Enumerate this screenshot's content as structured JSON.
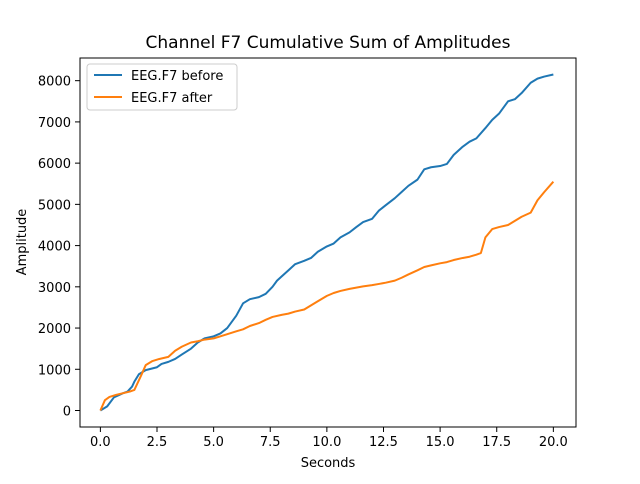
{
  "chart_data": {
    "type": "line",
    "title": "Channel F7 Cumulative Sum of Amplitudes",
    "xlabel": "Seconds",
    "ylabel": "Amplitude",
    "xlim": [
      -0.9,
      21.0
    ],
    "ylim": [
      -400,
      8550
    ],
    "xticks": [
      0.0,
      2.5,
      5.0,
      7.5,
      10.0,
      12.5,
      15.0,
      17.5,
      20.0
    ],
    "xtick_labels": [
      "0.0",
      "2.5",
      "5.0",
      "7.5",
      "10.0",
      "12.5",
      "15.0",
      "17.5",
      "20.0"
    ],
    "yticks": [
      0,
      1000,
      2000,
      3000,
      4000,
      5000,
      6000,
      7000,
      8000
    ],
    "ytick_labels": [
      "0",
      "1000",
      "2000",
      "3000",
      "4000",
      "5000",
      "6000",
      "7000",
      "8000"
    ],
    "grid": false,
    "legend_position": "top-left",
    "series": [
      {
        "name": "EEG.F7 before",
        "color": "#1f77b4",
        "x": [
          0,
          0.3,
          0.6,
          1.0,
          1.2,
          1.4,
          1.5,
          1.7,
          2.0,
          2.5,
          2.7,
          3.0,
          3.3,
          3.6,
          4.0,
          4.3,
          4.6,
          5.0,
          5.3,
          5.6,
          6.0,
          6.3,
          6.6,
          7.0,
          7.3,
          7.6,
          7.8,
          8.0,
          8.3,
          8.6,
          9.0,
          9.3,
          9.6,
          10.0,
          10.3,
          10.6,
          11.0,
          11.3,
          11.6,
          12.0,
          12.3,
          12.6,
          13.0,
          13.3,
          13.6,
          14.0,
          14.3,
          14.6,
          15.0,
          15.3,
          15.6,
          16.0,
          16.3,
          16.6,
          17.0,
          17.3,
          17.6,
          18.0,
          18.3,
          18.6,
          19.0,
          19.3,
          19.6,
          20.0
        ],
        "y": [
          0,
          100,
          320,
          420,
          460,
          580,
          700,
          880,
          980,
          1050,
          1130,
          1180,
          1250,
          1360,
          1500,
          1650,
          1750,
          1800,
          1870,
          2000,
          2300,
          2600,
          2700,
          2750,
          2830,
          3000,
          3150,
          3250,
          3400,
          3550,
          3630,
          3700,
          3850,
          3980,
          4050,
          4200,
          4320,
          4450,
          4570,
          4650,
          4850,
          4980,
          5150,
          5300,
          5450,
          5600,
          5850,
          5900,
          5930,
          5980,
          6200,
          6400,
          6520,
          6600,
          6850,
          7050,
          7200,
          7500,
          7550,
          7700,
          7950,
          8050,
          8100,
          8150
        ]
      },
      {
        "name": "EEG.F7 after",
        "color": "#ff7f0e",
        "x": [
          0,
          0.2,
          0.4,
          0.7,
          1.0,
          1.3,
          1.5,
          1.8,
          2.0,
          2.3,
          2.6,
          3.0,
          3.3,
          3.6,
          4.0,
          4.3,
          4.6,
          5.0,
          5.3,
          5.6,
          6.0,
          6.3,
          6.6,
          7.0,
          7.3,
          7.6,
          8.0,
          8.3,
          8.6,
          9.0,
          9.3,
          9.6,
          10.0,
          10.3,
          10.6,
          11.0,
          11.3,
          11.6,
          12.0,
          12.3,
          12.6,
          13.0,
          13.3,
          13.6,
          14.0,
          14.3,
          14.6,
          15.0,
          15.3,
          15.6,
          16.0,
          16.3,
          16.6,
          16.8,
          17.0,
          17.3,
          17.6,
          18.0,
          18.3,
          18.6,
          19.0,
          19.3,
          19.6,
          20.0
        ],
        "y": [
          0,
          250,
          330,
          380,
          420,
          460,
          500,
          850,
          1100,
          1200,
          1250,
          1300,
          1450,
          1550,
          1650,
          1680,
          1720,
          1750,
          1800,
          1850,
          1920,
          1970,
          2050,
          2120,
          2200,
          2270,
          2320,
          2350,
          2400,
          2450,
          2550,
          2650,
          2780,
          2850,
          2900,
          2950,
          2980,
          3010,
          3040,
          3070,
          3100,
          3150,
          3220,
          3300,
          3400,
          3480,
          3520,
          3570,
          3600,
          3650,
          3700,
          3730,
          3780,
          3820,
          4200,
          4400,
          4450,
          4500,
          4600,
          4700,
          4800,
          5100,
          5300,
          5550
        ]
      }
    ]
  }
}
